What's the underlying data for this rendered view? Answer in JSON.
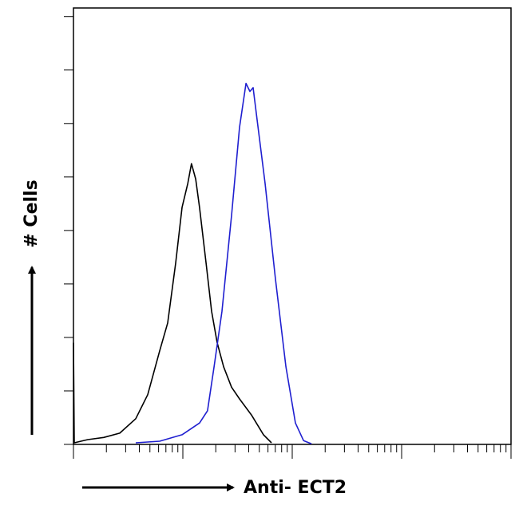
{
  "chart_data": {
    "type": "line",
    "ylabel": "# Cells",
    "xlabel": "Anti- ECT2",
    "xscale": "log",
    "xlim": [
      1,
      10000
    ],
    "xticks": [
      1,
      2,
      3,
      4,
      5,
      6,
      7,
      8,
      9,
      10,
      20,
      30,
      40,
      50,
      60,
      70,
      80,
      90,
      100,
      200,
      300,
      400,
      500,
      600,
      700,
      800,
      900,
      1000,
      2000,
      3000,
      4000,
      5000,
      6000,
      7000,
      8000,
      9000,
      10000
    ],
    "ylim": [
      0,
      8.16
    ],
    "yticks": [
      0,
      1,
      2,
      3,
      4,
      5,
      6,
      7,
      8
    ],
    "grid": false,
    "series": [
      {
        "color": "#000000",
        "x": [
          1,
          1.017,
          1.35,
          1.89,
          2.65,
          3.71,
          4.77,
          6.14,
          7.27,
          8.59,
          9.84,
          11.1,
          12.0,
          13.1,
          14.2,
          16.3,
          18.3,
          20.6,
          23.6,
          27.9,
          33.0,
          42.4,
          54.6,
          64.6
        ],
        "values": [
          1.9,
          0.03,
          0.09,
          0.13,
          0.21,
          0.48,
          0.93,
          1.75,
          2.27,
          3.39,
          4.43,
          4.88,
          5.25,
          4.96,
          4.43,
          3.39,
          2.49,
          1.9,
          1.45,
          1.07,
          0.85,
          0.55,
          0.18,
          0.03
        ]
      },
      {
        "color": "#1f1fd0",
        "x": [
          3.71,
          6.14,
          9.83,
          14.2,
          16.8,
          19.3,
          22.8,
          27.9,
          33.0,
          37.8,
          41.0,
          43.9,
          47.7,
          56.5,
          70.3,
          87.5,
          107,
          127,
          150
        ],
        "values": [
          0.03,
          0.06,
          0.18,
          0.4,
          0.63,
          1.45,
          2.49,
          4.28,
          5.93,
          6.75,
          6.6,
          6.67,
          6.07,
          4.88,
          3.09,
          1.45,
          0.4,
          0.07,
          0.01
        ]
      }
    ]
  }
}
